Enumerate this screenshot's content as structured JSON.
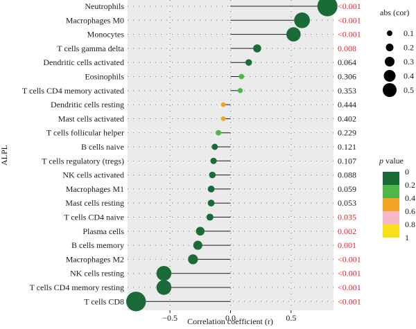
{
  "chart_data": {
    "type": "scatter",
    "subtype": "lollipop",
    "ylabel": "ALPL",
    "xlabel": "Correlation coefficient (r)",
    "xlim": [
      -0.85,
      0.85
    ],
    "xticks": [
      -0.5,
      0,
      0.5
    ],
    "xtick_labels": [
      "−0.5",
      "0.0",
      "0.5"
    ],
    "grid": true,
    "categories": [
      "Neutrophils",
      "Macrophages M0",
      "Monocytes",
      "T cells gamma delta",
      "Dendritic cells activated",
      "Eosinophils",
      "T cells CD4 memory activated",
      "Dendritic cells resting",
      "Mast cells activated",
      "T cells follicular helper",
      "B cells naive",
      "T cells regulatory (tregs)",
      "NK cells activated",
      "Macrophages M1",
      "Mast cells resting",
      "T cells CD4 naive",
      "Plasma cells",
      "B cells memory",
      "Macrophages M2",
      "NK cells resting",
      "T cells CD4 memory resting",
      "T cells CD8"
    ],
    "correlation": [
      0.8,
      0.59,
      0.52,
      0.22,
      0.15,
      0.09,
      0.08,
      -0.06,
      -0.06,
      -0.1,
      -0.13,
      -0.14,
      -0.15,
      -0.16,
      -0.16,
      -0.17,
      -0.25,
      -0.27,
      -0.31,
      -0.55,
      -0.55,
      -0.78
    ],
    "p_value_labels": [
      "<0.001",
      "<0.001",
      "<0.001",
      "0.008",
      "0.064",
      "0.306",
      "0.353",
      "0.444",
      "0.402",
      "0.229",
      "0.121",
      "0.107",
      "0.088",
      "0.059",
      "0.053",
      "0.035",
      "0.002",
      "0.001",
      "<0.001",
      "<0.001",
      "<0.001",
      "<0.001"
    ],
    "p_values": [
      0.0005,
      0.0005,
      0.0005,
      0.008,
      0.064,
      0.306,
      0.353,
      0.444,
      0.402,
      0.229,
      0.121,
      0.107,
      0.088,
      0.059,
      0.053,
      0.035,
      0.002,
      0.001,
      0.0005,
      0.0005,
      0.0005,
      0.0005
    ],
    "size_legend": {
      "title": "abs (cor)",
      "values": [
        0.1,
        0.2,
        0.3,
        0.4,
        0.5
      ],
      "labels": [
        "0.1",
        "0.2",
        "0.3",
        "0.4",
        "0.5"
      ]
    },
    "color_legend": {
      "title_italic": "p",
      "title_rest": " value",
      "ticks": [
        "0",
        "0.2",
        "0.4",
        "0.6",
        "0.8",
        "1"
      ],
      "colors": [
        "#1a6b37",
        "#4db848",
        "#f4a324",
        "#f7b8c8",
        "#f7e01a"
      ]
    },
    "significant_color": "#e8202a",
    "nonsignificant_color": "#1a1a1a",
    "stick_color": "#1a1a1a",
    "panel_color": "#ebebeb"
  }
}
